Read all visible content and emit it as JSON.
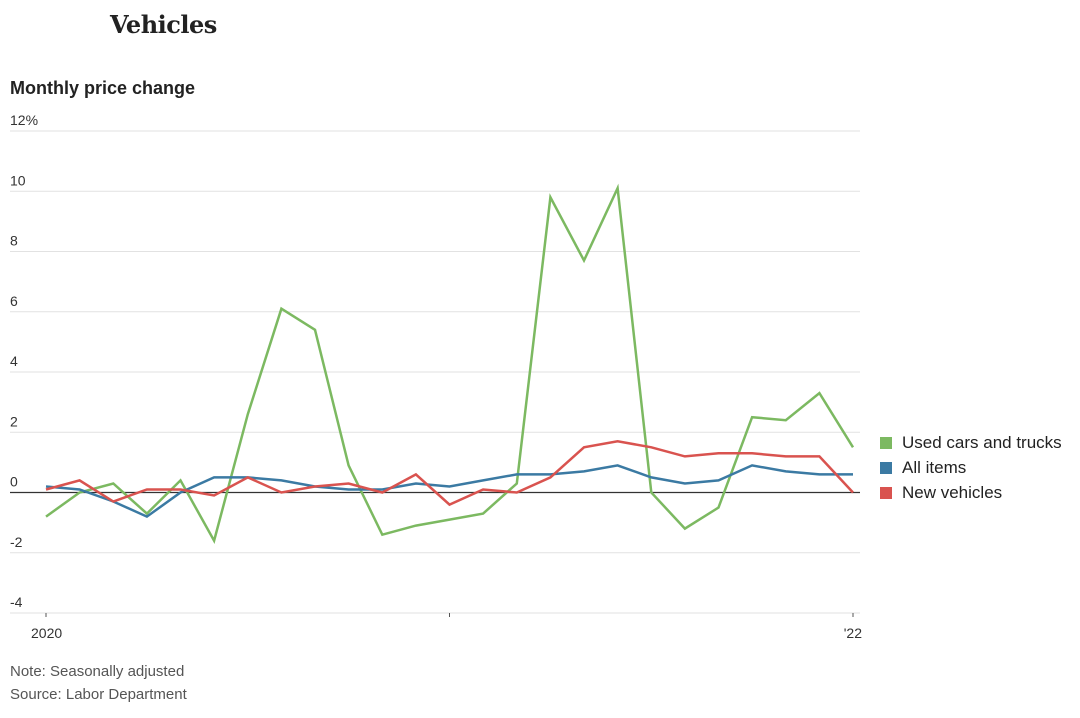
{
  "header": {
    "title": "Vehicles",
    "subtitle": "Monthly price change"
  },
  "notes": {
    "note": "Note: Seasonally adjusted",
    "source": "Source: Labor Department"
  },
  "colors": {
    "used": "#7cb961",
    "all": "#3b7aa3",
    "new": "#d9534f",
    "grid": "#e2e2e2",
    "zero": "#333333",
    "tick_text": "#333333"
  },
  "chart_data": {
    "type": "line",
    "title": "Monthly price change",
    "xlabel": "",
    "ylabel": "",
    "ylim": [
      -4,
      12
    ],
    "yticks": [
      -4,
      -2,
      0,
      2,
      4,
      6,
      8,
      10,
      12
    ],
    "ytick_labels": [
      "-4",
      "-2",
      "0",
      "2",
      "4",
      "6",
      "8",
      "10",
      "12%"
    ],
    "x_tick_labels": [
      {
        "index": 0,
        "label": "2020"
      },
      {
        "index": 12,
        "label": ""
      },
      {
        "index": 24,
        "label": "'22"
      }
    ],
    "x": [
      "2020-01",
      "2020-02",
      "2020-03",
      "2020-04",
      "2020-05",
      "2020-06",
      "2020-07",
      "2020-08",
      "2020-09",
      "2020-10",
      "2020-11",
      "2020-12",
      "2021-01",
      "2021-02",
      "2021-03",
      "2021-04",
      "2021-05",
      "2021-06",
      "2021-07",
      "2021-08",
      "2021-09",
      "2021-10",
      "2021-11",
      "2021-12",
      "2022-01"
    ],
    "legend_position": "right",
    "series": [
      {
        "name": "Used cars and trucks",
        "color_key": "used",
        "values": [
          -0.8,
          0.0,
          0.3,
          -0.7,
          0.4,
          -1.6,
          2.6,
          6.1,
          5.4,
          0.9,
          -1.4,
          -1.1,
          -0.9,
          -0.7,
          0.3,
          9.8,
          7.7,
          10.1,
          0.0,
          -1.2,
          -0.5,
          2.5,
          2.4,
          3.3,
          1.5
        ]
      },
      {
        "name": "All items",
        "color_key": "all",
        "values": [
          0.2,
          0.1,
          -0.3,
          -0.8,
          0.0,
          0.5,
          0.5,
          0.4,
          0.2,
          0.1,
          0.1,
          0.3,
          0.2,
          0.4,
          0.6,
          0.6,
          0.7,
          0.9,
          0.5,
          0.3,
          0.4,
          0.9,
          0.7,
          0.6,
          0.6
        ]
      },
      {
        "name": "New vehicles",
        "color_key": "new",
        "values": [
          0.1,
          0.4,
          -0.3,
          0.1,
          0.1,
          -0.1,
          0.5,
          0.0,
          0.2,
          0.3,
          0.0,
          0.6,
          -0.4,
          0.1,
          0.0,
          0.5,
          1.5,
          1.7,
          1.5,
          1.2,
          1.3,
          1.3,
          1.2,
          1.2,
          0.0
        ]
      }
    ]
  }
}
